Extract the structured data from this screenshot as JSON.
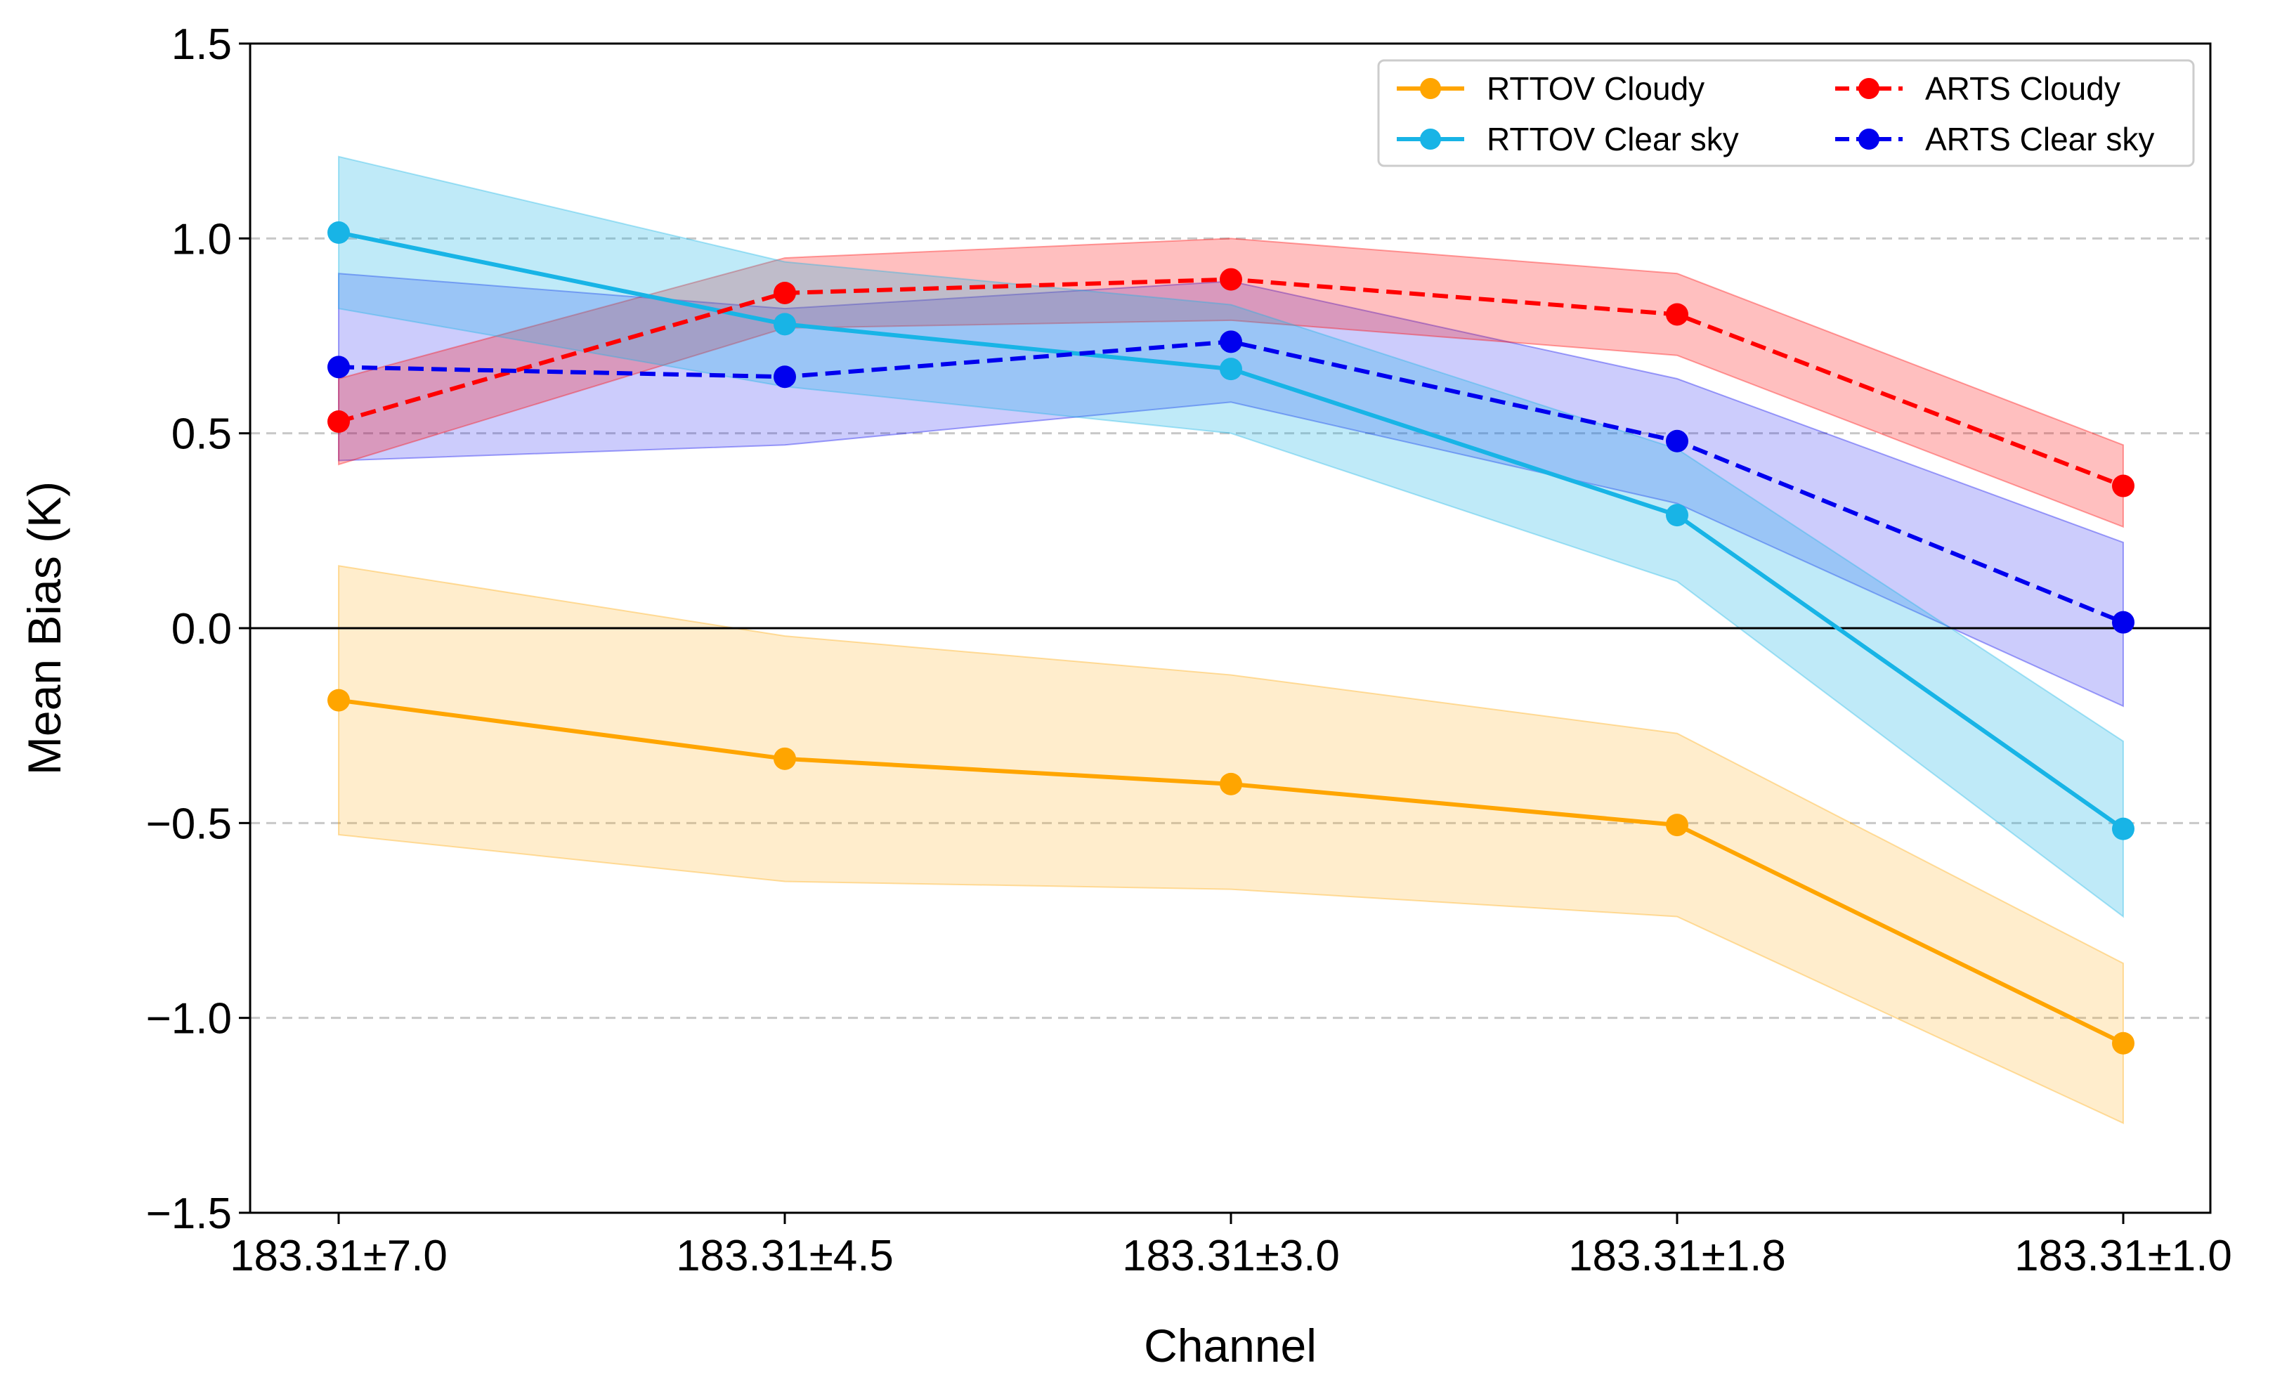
{
  "chart_data": {
    "type": "line",
    "title": "",
    "xlabel": "Channel",
    "ylabel": "Mean Bias (K)",
    "categories": [
      "183.31±7.0",
      "183.31±4.5",
      "183.31±3.0",
      "183.31±1.8",
      "183.31±1.0"
    ],
    "ylim": [
      -1.5,
      1.5
    ],
    "yticks": [
      -1.5,
      -1.0,
      -0.5,
      0.0,
      0.5,
      1.0,
      1.5
    ],
    "ytick_labels": [
      "−1.5",
      "−1.0",
      "−0.5",
      "0.0",
      "0.5",
      "1.0",
      "1.5"
    ],
    "grid": "horizontal dashed",
    "zero_line": true,
    "legend_position": "top-right",
    "series": [
      {
        "name": "RTTOV Cloudy",
        "color": "#FFA500",
        "linestyle": "solid",
        "values": [
          -0.185,
          -0.335,
          -0.4,
          -0.505,
          -1.065
        ],
        "upper": [
          0.16,
          -0.02,
          -0.12,
          -0.27,
          -0.86
        ],
        "lower": [
          -0.53,
          -0.65,
          -0.67,
          -0.74,
          -1.27
        ]
      },
      {
        "name": "RTTOV Clear sky",
        "color": "#18B4E6",
        "linestyle": "solid",
        "values": [
          1.015,
          0.78,
          0.665,
          0.29,
          -0.515
        ],
        "upper": [
          1.21,
          0.94,
          0.83,
          0.46,
          -0.29
        ],
        "lower": [
          0.82,
          0.62,
          0.5,
          0.12,
          -0.74
        ]
      },
      {
        "name": "ARTS Cloudy",
        "color": "#FF0000",
        "linestyle": "dashed",
        "values": [
          0.53,
          0.86,
          0.895,
          0.805,
          0.365
        ],
        "upper": [
          0.64,
          0.95,
          1.0,
          0.91,
          0.47
        ],
        "lower": [
          0.42,
          0.77,
          0.79,
          0.7,
          0.26
        ]
      },
      {
        "name": "ARTS Clear sky",
        "color": "#0000EE",
        "linestyle": "dashed",
        "values": [
          0.67,
          0.645,
          0.735,
          0.48,
          0.015
        ],
        "upper": [
          0.91,
          0.82,
          0.89,
          0.64,
          0.22
        ],
        "lower": [
          0.43,
          0.47,
          0.58,
          0.32,
          -0.2
        ]
      }
    ]
  }
}
